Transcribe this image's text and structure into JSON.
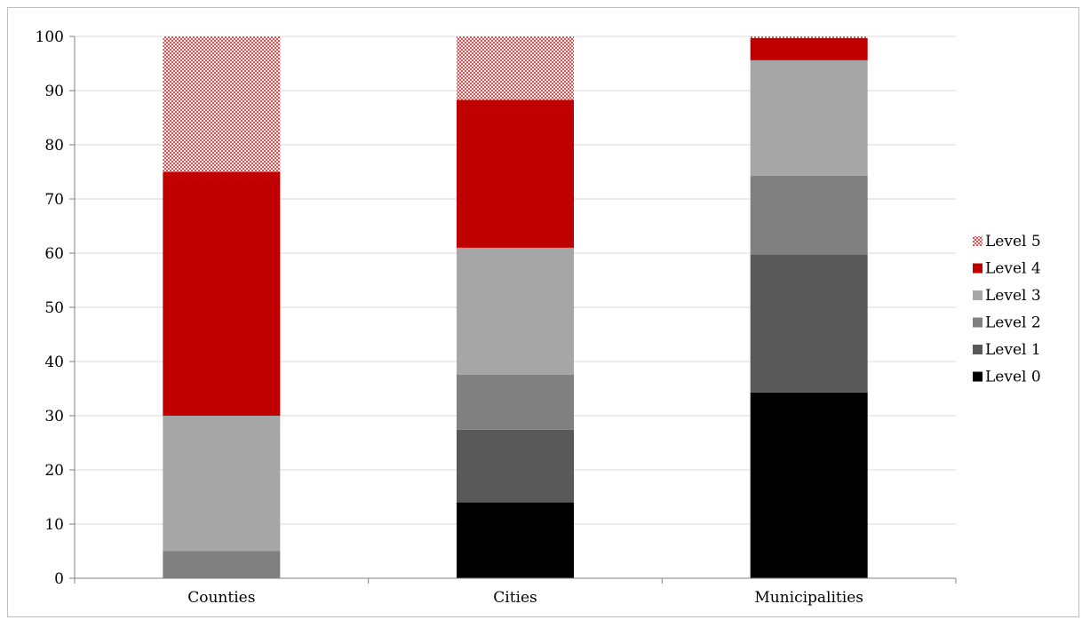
{
  "header": {
    "cut_text": ""
  },
  "chart_data": {
    "type": "bar",
    "stacked": true,
    "categories": [
      "Counties",
      "Cities",
      "Municipalities"
    ],
    "series": [
      {
        "name": "Level 0",
        "color": "#000000",
        "pattern": false,
        "values": [
          0,
          14,
          34.3
        ]
      },
      {
        "name": "Level 1",
        "color": "#595959",
        "pattern": false,
        "values": [
          0,
          13.4,
          25.5
        ]
      },
      {
        "name": "Level 2",
        "color": "#808080",
        "pattern": false,
        "values": [
          5,
          10.2,
          14.5
        ]
      },
      {
        "name": "Level 3",
        "color": "#a6a6a6",
        "pattern": false,
        "values": [
          25,
          23.4,
          21.3
        ]
      },
      {
        "name": "Level 4",
        "color": "#c00000",
        "pattern": false,
        "values": [
          45,
          27.3,
          4.1
        ]
      },
      {
        "name": "Level 5",
        "color": "#ff5050",
        "pattern": true,
        "values": [
          25,
          11.7,
          0.3
        ]
      }
    ],
    "ylim": [
      0,
      100
    ],
    "yticks": [
      "0",
      "10",
      "20",
      "30",
      "40",
      "50",
      "60",
      "70",
      "80",
      "90",
      "100"
    ],
    "grid": true,
    "legend": "right",
    "title": "",
    "xlabel": "",
    "ylabel": ""
  }
}
